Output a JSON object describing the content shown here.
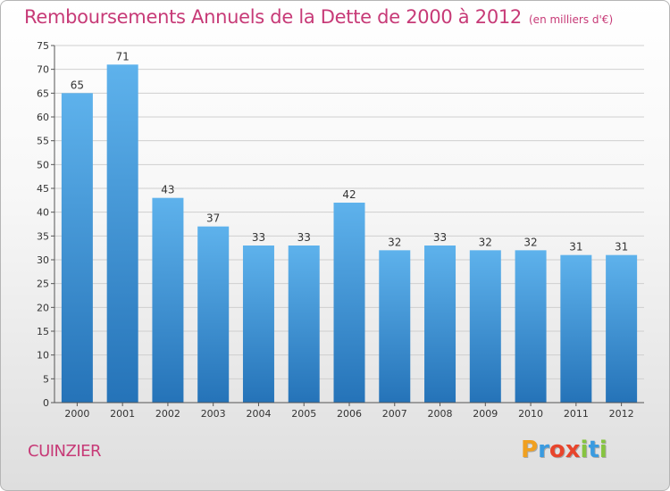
{
  "title": "Remboursements Annuels de la Dette de 2000 à 2012",
  "subtitle": "(en milliers d'€)",
  "commune": "CUINZIER",
  "logo": {
    "letters": [
      "P",
      "r",
      "o",
      "x",
      "i",
      "t",
      "i"
    ],
    "colors": [
      "#f0a020",
      "#3a9be0",
      "#e8452c",
      "#e8452c",
      "#86c440",
      "#3a9be0",
      "#86c440"
    ]
  },
  "colors": {
    "bar_light": "#5eb2ec",
    "bar_dark": "#2573b8",
    "text_accent": "#c73a77",
    "grid": "#cfcfcf"
  },
  "chart_data": {
    "type": "bar",
    "categories": [
      "2000",
      "2001",
      "2002",
      "2003",
      "2004",
      "2005",
      "2006",
      "2007",
      "2008",
      "2009",
      "2010",
      "2011",
      "2012"
    ],
    "values": [
      65,
      71,
      43,
      37,
      33,
      33,
      42,
      32,
      33,
      32,
      32,
      31,
      31
    ],
    "ylim": [
      0,
      75
    ],
    "yticks": [
      0,
      5,
      10,
      15,
      20,
      25,
      30,
      35,
      40,
      45,
      50,
      55,
      60,
      65,
      70,
      75
    ],
    "grid": true,
    "data_labels": true
  }
}
